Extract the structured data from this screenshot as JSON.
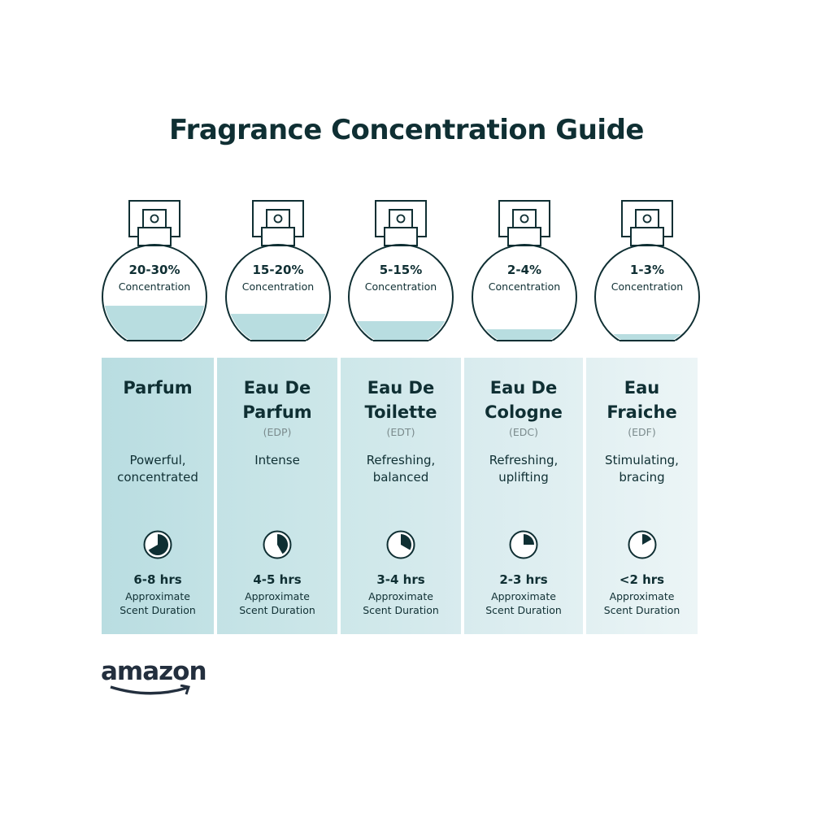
{
  "title": "Fragrance Concentration Guide",
  "colors": {
    "text": "#0f2f33",
    "liquid": "#b8dde0",
    "panel_start": "#b9dde1",
    "panel_end": "#eaf4f5"
  },
  "types": [
    {
      "concentration": "20-30%",
      "concentration_label": "Concentration",
      "fill_level": 0.43,
      "name_line1": "Parfum",
      "name_line2": "",
      "abbr": "",
      "desc_line1": "Powerful,",
      "desc_line2": "concentrated",
      "clock_fraction": 0.667,
      "clock_icon": "clock-icon",
      "hours": "6-8 hrs",
      "duration_line1": "Approximate",
      "duration_line2": "Scent Duration"
    },
    {
      "concentration": "15-20%",
      "concentration_label": "Concentration",
      "fill_level": 0.33,
      "name_line1": "Eau De",
      "name_line2": "Parfum",
      "abbr": "(EDP)",
      "desc_line1": "Intense",
      "desc_line2": "",
      "clock_fraction": 0.417,
      "clock_icon": "clock-icon",
      "hours": "4-5 hrs",
      "duration_line1": "Approximate",
      "duration_line2": "Scent Duration"
    },
    {
      "concentration": "5-15%",
      "concentration_label": "Concentration",
      "fill_level": 0.24,
      "name_line1": "Eau De",
      "name_line2": "Toilette",
      "abbr": "(EDT)",
      "desc_line1": "Refreshing,",
      "desc_line2": "balanced",
      "clock_fraction": 0.333,
      "clock_icon": "clock-icon",
      "hours": "3-4 hrs",
      "duration_line1": "Approximate",
      "duration_line2": "Scent Duration"
    },
    {
      "concentration": "2-4%",
      "concentration_label": "Concentration",
      "fill_level": 0.14,
      "name_line1": "Eau De",
      "name_line2": "Cologne",
      "abbr": "(EDC)",
      "desc_line1": "Refreshing,",
      "desc_line2": "uplifting",
      "clock_fraction": 0.25,
      "clock_icon": "clock-icon",
      "hours": "2-3 hrs",
      "duration_line1": "Approximate",
      "duration_line2": "Scent Duration"
    },
    {
      "concentration": "1-3%",
      "concentration_label": "Concentration",
      "fill_level": 0.08,
      "name_line1": "Eau",
      "name_line2": "Fraiche",
      "abbr": "(EDF)",
      "desc_line1": "Stimulating,",
      "desc_line2": "bracing",
      "clock_fraction": 0.167,
      "clock_icon": "clock-icon",
      "hours": "<2 hrs",
      "duration_line1": "Approximate",
      "duration_line2": "Scent Duration"
    }
  ],
  "logo": "amazon"
}
